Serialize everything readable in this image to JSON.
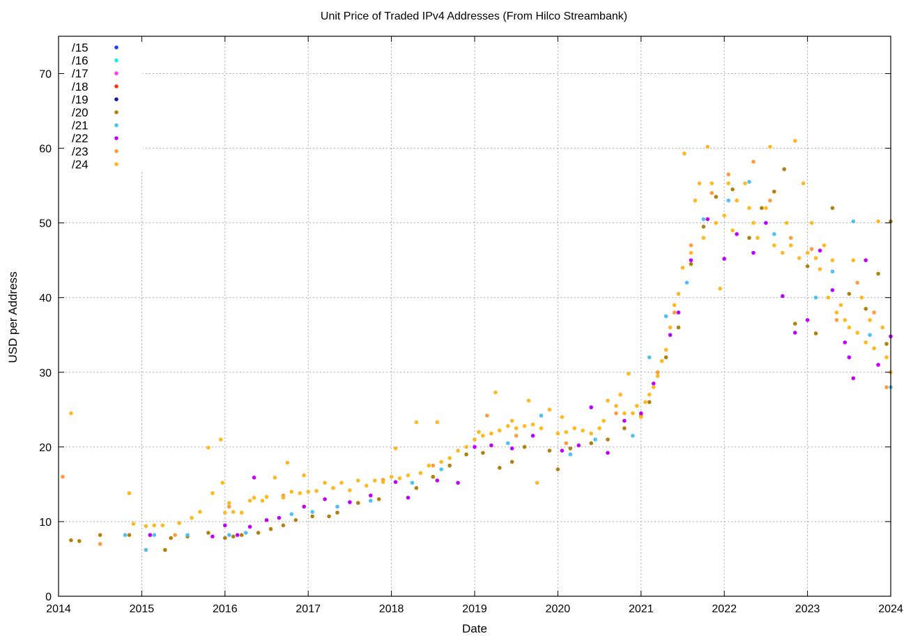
{
  "chart_data": {
    "type": "scatter",
    "title": "Unit Price of Traded IPv4 Addresses (From Hilco Streambank)",
    "xlabel": "Date",
    "ylabel": "USD per Address",
    "xlim": [
      2014,
      2024
    ],
    "ylim": [
      0,
      75
    ],
    "x_ticks": [
      "2014",
      "2015",
      "2016",
      "2017",
      "2018",
      "2019",
      "2020",
      "2021",
      "2022",
      "2023",
      "2024"
    ],
    "y_ticks": [
      "0",
      "10",
      "20",
      "30",
      "40",
      "50",
      "60",
      "70"
    ],
    "grid": true,
    "legend_position": "top-left",
    "series": [
      {
        "name": "/15",
        "color": "#2040ff",
        "points": []
      },
      {
        "name": "/16",
        "color": "#10f0f0",
        "points": []
      },
      {
        "name": "/17",
        "color": "#ff40f0",
        "points": []
      },
      {
        "name": "/18",
        "color": "#ff3020",
        "points": []
      },
      {
        "name": "/19",
        "color": "#1818a0",
        "points": []
      },
      {
        "name": "/20",
        "color": "#b08010",
        "points": [
          [
            2014.15,
            7.5
          ],
          [
            2014.25,
            7.4
          ],
          [
            2014.5,
            8.2
          ],
          [
            2014.85,
            8.2
          ],
          [
            2015.1,
            8.2
          ],
          [
            2015.28,
            6.2
          ],
          [
            2015.35,
            7.8
          ],
          [
            2015.55,
            8
          ],
          [
            2015.8,
            8.5
          ],
          [
            2016.0,
            7.8
          ],
          [
            2016.1,
            8
          ],
          [
            2016.2,
            8.2
          ],
          [
            2016.4,
            8.5
          ],
          [
            2016.55,
            9
          ],
          [
            2016.7,
            9.5
          ],
          [
            2016.85,
            10.2
          ],
          [
            2017.05,
            10.7
          ],
          [
            2017.25,
            10.7
          ],
          [
            2017.35,
            11.2
          ],
          [
            2017.6,
            12.5
          ],
          [
            2017.85,
            13
          ],
          [
            2018.3,
            14.5
          ],
          [
            2018.5,
            16
          ],
          [
            2018.7,
            17.5
          ],
          [
            2018.9,
            19
          ],
          [
            2019.1,
            19.2
          ],
          [
            2019.3,
            17.2
          ],
          [
            2019.45,
            18
          ],
          [
            2019.6,
            20
          ],
          [
            2019.9,
            19.5
          ],
          [
            2020.0,
            17
          ],
          [
            2020.15,
            19.8
          ],
          [
            2020.4,
            20.5
          ],
          [
            2020.6,
            21
          ],
          [
            2020.8,
            22.5
          ],
          [
            2021.0,
            24.2
          ],
          [
            2021.1,
            26
          ],
          [
            2021.3,
            32
          ],
          [
            2021.45,
            36
          ],
          [
            2021.6,
            44.5
          ],
          [
            2021.75,
            49.5
          ],
          [
            2021.9,
            53.5
          ],
          [
            2022.1,
            54.5
          ],
          [
            2022.3,
            48
          ],
          [
            2022.45,
            52
          ],
          [
            2022.6,
            54.2
          ],
          [
            2022.72,
            57.2
          ],
          [
            2022.85,
            36.5
          ],
          [
            2023.0,
            44.2
          ],
          [
            2023.1,
            35.2
          ],
          [
            2023.3,
            52
          ],
          [
            2023.5,
            40.5
          ],
          [
            2023.7,
            38.5
          ],
          [
            2023.85,
            43.2
          ],
          [
            2023.95,
            33.8
          ],
          [
            2024.0,
            50.2
          ]
        ]
      },
      {
        "name": "/21",
        "color": "#50c0f0",
        "points": [
          [
            2014.8,
            8.2
          ],
          [
            2015.05,
            6.2
          ],
          [
            2015.15,
            8.2
          ],
          [
            2015.55,
            8.2
          ],
          [
            2016.05,
            8.2
          ],
          [
            2016.25,
            8.5
          ],
          [
            2016.8,
            11
          ],
          [
            2017.05,
            11.3
          ],
          [
            2017.35,
            12
          ],
          [
            2017.75,
            12.8
          ],
          [
            2018.25,
            15.2
          ],
          [
            2018.6,
            17
          ],
          [
            2019.4,
            20.5
          ],
          [
            2019.8,
            24.2
          ],
          [
            2020.15,
            19
          ],
          [
            2020.45,
            21
          ],
          [
            2020.9,
            21.5
          ],
          [
            2021.1,
            32
          ],
          [
            2021.3,
            37.5
          ],
          [
            2021.55,
            42
          ],
          [
            2021.75,
            50.5
          ],
          [
            2022.05,
            53
          ],
          [
            2022.3,
            55.5
          ],
          [
            2022.6,
            48.5
          ],
          [
            2023.1,
            40
          ],
          [
            2023.3,
            43.5
          ],
          [
            2023.55,
            50.2
          ],
          [
            2023.75,
            35
          ],
          [
            2024.0,
            28
          ]
        ]
      },
      {
        "name": "/22",
        "color": "#c000ff",
        "points": [
          [
            2015.1,
            8.2
          ],
          [
            2015.85,
            8
          ],
          [
            2016.0,
            9.5
          ],
          [
            2016.15,
            8.2
          ],
          [
            2016.3,
            9.3
          ],
          [
            2016.35,
            15.9
          ],
          [
            2016.5,
            10.2
          ],
          [
            2016.65,
            10.5
          ],
          [
            2016.95,
            12
          ],
          [
            2017.2,
            13
          ],
          [
            2017.5,
            12.6
          ],
          [
            2017.75,
            13.5
          ],
          [
            2018.05,
            15.3
          ],
          [
            2018.2,
            13.2
          ],
          [
            2018.55,
            15.5
          ],
          [
            2018.8,
            15.2
          ],
          [
            2019.0,
            20
          ],
          [
            2019.2,
            20.2
          ],
          [
            2019.45,
            19.8
          ],
          [
            2019.7,
            21.5
          ],
          [
            2020.05,
            19.5
          ],
          [
            2020.25,
            20.2
          ],
          [
            2020.4,
            25.3
          ],
          [
            2020.6,
            19.2
          ],
          [
            2020.8,
            23.5
          ],
          [
            2021.0,
            24.5
          ],
          [
            2021.15,
            28.5
          ],
          [
            2021.35,
            35
          ],
          [
            2021.45,
            38
          ],
          [
            2021.6,
            45
          ],
          [
            2021.8,
            50.5
          ],
          [
            2022.0,
            45.2
          ],
          [
            2022.15,
            48.5
          ],
          [
            2022.35,
            46
          ],
          [
            2022.5,
            50
          ],
          [
            2022.7,
            40.2
          ],
          [
            2022.85,
            35.3
          ],
          [
            2023.0,
            37
          ],
          [
            2023.15,
            46.3
          ],
          [
            2023.3,
            41
          ],
          [
            2023.45,
            34
          ],
          [
            2023.5,
            32
          ],
          [
            2023.55,
            29.2
          ],
          [
            2023.7,
            45
          ],
          [
            2023.85,
            31
          ],
          [
            2024.0,
            34.8
          ]
        ]
      },
      {
        "name": "/23",
        "color": "#ff9a40",
        "points": [
          [
            2014.05,
            16
          ],
          [
            2014.5,
            7
          ],
          [
            2015.4,
            8.2
          ],
          [
            2016.05,
            12
          ],
          [
            2016.7,
            13.5
          ],
          [
            2017.3,
            14.5
          ],
          [
            2017.9,
            15.6
          ],
          [
            2018.5,
            17.5
          ],
          [
            2019.15,
            24.2
          ],
          [
            2019.5,
            21.5
          ],
          [
            2020.1,
            20.5
          ],
          [
            2020.7,
            24.5
          ],
          [
            2021.2,
            30
          ],
          [
            2021.4,
            38
          ],
          [
            2021.6,
            47
          ],
          [
            2021.85,
            54
          ],
          [
            2022.05,
            56.5
          ],
          [
            2022.35,
            58.2
          ],
          [
            2022.55,
            53
          ],
          [
            2022.8,
            48
          ],
          [
            2023.05,
            46.5
          ],
          [
            2023.35,
            37
          ],
          [
            2023.6,
            42
          ],
          [
            2023.8,
            38
          ],
          [
            2023.95,
            28
          ]
        ]
      },
      {
        "name": "/24",
        "color": "#ffb820",
        "points": [
          [
            2014.15,
            24.5
          ],
          [
            2014.85,
            13.8
          ],
          [
            2014.9,
            9.7
          ],
          [
            2015.05,
            9.4
          ],
          [
            2015.15,
            9.5
          ],
          [
            2015.25,
            9.5
          ],
          [
            2015.45,
            9.8
          ],
          [
            2015.6,
            10.5
          ],
          [
            2015.7,
            11.3
          ],
          [
            2015.8,
            19.9
          ],
          [
            2015.85,
            13.8
          ],
          [
            2015.95,
            21
          ],
          [
            2015.97,
            15.2
          ],
          [
            2016.0,
            11.2
          ],
          [
            2016.05,
            12.5
          ],
          [
            2016.1,
            11.3
          ],
          [
            2016.2,
            11.2
          ],
          [
            2016.3,
            12.8
          ],
          [
            2016.35,
            13.2
          ],
          [
            2016.45,
            12.8
          ],
          [
            2016.5,
            13.3
          ],
          [
            2016.6,
            15.9
          ],
          [
            2016.7,
            13.2
          ],
          [
            2016.75,
            17.9
          ],
          [
            2016.8,
            14
          ],
          [
            2016.9,
            13.8
          ],
          [
            2016.95,
            16.2
          ],
          [
            2017.0,
            14
          ],
          [
            2017.1,
            14.1
          ],
          [
            2017.2,
            15.2
          ],
          [
            2017.3,
            14.5
          ],
          [
            2017.4,
            15.2
          ],
          [
            2017.5,
            14.2
          ],
          [
            2017.6,
            15.5
          ],
          [
            2017.7,
            14.8
          ],
          [
            2017.8,
            15.5
          ],
          [
            2017.9,
            15.3
          ],
          [
            2018.0,
            16
          ],
          [
            2018.05,
            19.8
          ],
          [
            2018.1,
            15.8
          ],
          [
            2018.2,
            16.2
          ],
          [
            2018.3,
            23.3
          ],
          [
            2018.35,
            16.5
          ],
          [
            2018.45,
            17.5
          ],
          [
            2018.55,
            23.3
          ],
          [
            2018.6,
            18
          ],
          [
            2018.7,
            18.5
          ],
          [
            2018.8,
            19.5
          ],
          [
            2018.9,
            20
          ],
          [
            2019.0,
            21
          ],
          [
            2019.05,
            22
          ],
          [
            2019.1,
            21.5
          ],
          [
            2019.2,
            21.8
          ],
          [
            2019.25,
            27.3
          ],
          [
            2019.3,
            22.2
          ],
          [
            2019.4,
            22.8
          ],
          [
            2019.45,
            23.5
          ],
          [
            2019.5,
            22.5
          ],
          [
            2019.6,
            22.8
          ],
          [
            2019.65,
            26.2
          ],
          [
            2019.7,
            23
          ],
          [
            2019.75,
            15.2
          ],
          [
            2019.8,
            22.5
          ],
          [
            2019.9,
            25
          ],
          [
            2020.0,
            21.8
          ],
          [
            2020.05,
            24
          ],
          [
            2020.1,
            22
          ],
          [
            2020.2,
            22.5
          ],
          [
            2020.3,
            22.2
          ],
          [
            2020.4,
            21.8
          ],
          [
            2020.5,
            22.5
          ],
          [
            2020.55,
            23.5
          ],
          [
            2020.6,
            26.2
          ],
          [
            2020.7,
            25.5
          ],
          [
            2020.75,
            27
          ],
          [
            2020.8,
            24.5
          ],
          [
            2020.85,
            29.8
          ],
          [
            2020.9,
            24.5
          ],
          [
            2020.95,
            25.5
          ],
          [
            2021.0,
            24
          ],
          [
            2021.05,
            26
          ],
          [
            2021.1,
            27
          ],
          [
            2021.15,
            28
          ],
          [
            2021.2,
            29.5
          ],
          [
            2021.25,
            31.5
          ],
          [
            2021.3,
            33
          ],
          [
            2021.35,
            36
          ],
          [
            2021.4,
            39
          ],
          [
            2021.45,
            40.5
          ],
          [
            2021.5,
            44
          ],
          [
            2021.52,
            59.3
          ],
          [
            2021.6,
            46
          ],
          [
            2021.65,
            53
          ],
          [
            2021.7,
            55.3
          ],
          [
            2021.75,
            48
          ],
          [
            2021.8,
            60.2
          ],
          [
            2021.85,
            55.3
          ],
          [
            2021.9,
            50
          ],
          [
            2021.95,
            41.2
          ],
          [
            2022.0,
            51
          ],
          [
            2022.05,
            55.3
          ],
          [
            2022.1,
            49
          ],
          [
            2022.15,
            53
          ],
          [
            2022.25,
            55.3
          ],
          [
            2022.3,
            52
          ],
          [
            2022.35,
            50
          ],
          [
            2022.4,
            48
          ],
          [
            2022.5,
            52
          ],
          [
            2022.55,
            60.2
          ],
          [
            2022.6,
            47
          ],
          [
            2022.7,
            46
          ],
          [
            2022.75,
            50
          ],
          [
            2022.8,
            47
          ],
          [
            2022.85,
            61
          ],
          [
            2022.9,
            45.3
          ],
          [
            2022.95,
            55.3
          ],
          [
            2023.0,
            46
          ],
          [
            2023.05,
            50
          ],
          [
            2023.1,
            45.3
          ],
          [
            2023.15,
            43.8
          ],
          [
            2023.2,
            47
          ],
          [
            2023.25,
            40
          ],
          [
            2023.3,
            45
          ],
          [
            2023.35,
            38
          ],
          [
            2023.4,
            39
          ],
          [
            2023.45,
            37
          ],
          [
            2023.5,
            36
          ],
          [
            2023.55,
            45
          ],
          [
            2023.6,
            35.3
          ],
          [
            2023.65,
            40
          ],
          [
            2023.7,
            34
          ],
          [
            2023.75,
            37
          ],
          [
            2023.8,
            33.2
          ],
          [
            2023.85,
            50.2
          ],
          [
            2023.9,
            36
          ],
          [
            2023.95,
            32
          ],
          [
            2024.0,
            30
          ]
        ]
      }
    ]
  }
}
